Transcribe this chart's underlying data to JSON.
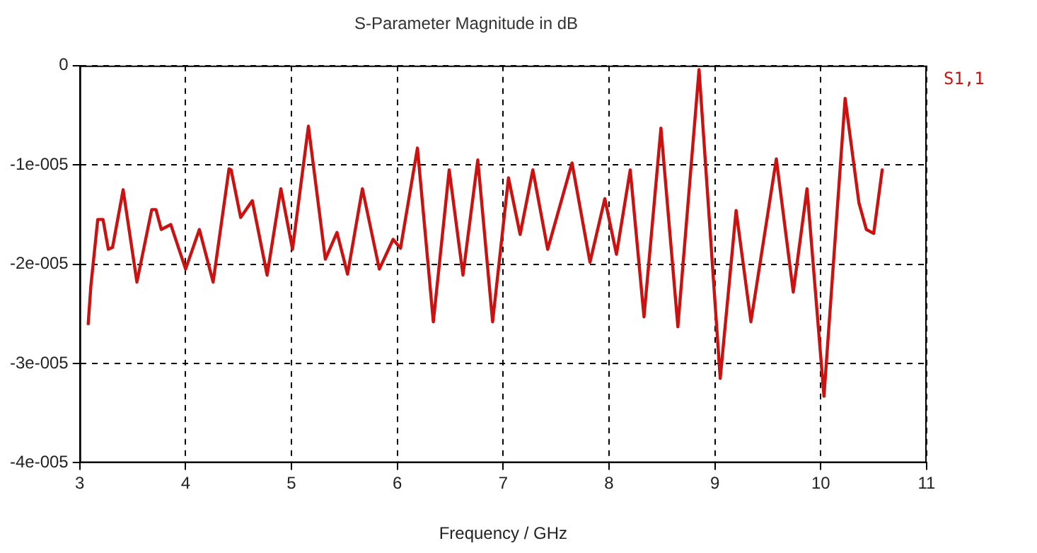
{
  "chart_data": {
    "type": "line",
    "title": "S-Parameter Magnitude in dB",
    "xlabel": "Frequency / GHz",
    "series": [
      {
        "name": "S1,1",
        "color": "#cc1111",
        "x": [
          3.08,
          3.105,
          3.17,
          3.22,
          3.27,
          3.31,
          3.41,
          3.54,
          3.68,
          3.72,
          3.77,
          3.86,
          4.0,
          4.13,
          4.26,
          4.41,
          4.43,
          4.52,
          4.63,
          4.77,
          4.9,
          5.01,
          5.16,
          5.32,
          5.43,
          5.53,
          5.67,
          5.83,
          5.96,
          6.03,
          6.19,
          6.34,
          6.49,
          6.62,
          6.76,
          6.9,
          7.05,
          7.16,
          7.28,
          7.42,
          7.65,
          7.82,
          7.96,
          8.07,
          8.2,
          8.33,
          8.49,
          8.65,
          8.85,
          9.05,
          9.2,
          9.34,
          9.58,
          9.74,
          9.87,
          10.03,
          10.23,
          10.36,
          10.43,
          10.5,
          10.58
        ],
        "values": [
          -2.6e-05,
          -2.22e-05,
          -1.55e-05,
          -1.55e-05,
          -1.85e-05,
          -1.83e-05,
          -1.25e-05,
          -2.18e-05,
          -1.45e-05,
          -1.45e-05,
          -1.65e-05,
          -1.6e-05,
          -2.05e-05,
          -1.65e-05,
          -2.18e-05,
          -1.04e-05,
          -1.05e-05,
          -1.53e-05,
          -1.36e-05,
          -2.11e-05,
          -1.24e-05,
          -1.85e-05,
          -6.1e-06,
          -1.95e-05,
          -1.68e-05,
          -2.1e-05,
          -1.24e-05,
          -2.05e-05,
          -1.75e-05,
          -1.84e-05,
          -8.3e-06,
          -2.58e-05,
          -1.05e-05,
          -2.11e-05,
          -9.5e-06,
          -2.58e-05,
          -1.13e-05,
          -1.7e-05,
          -1.05e-05,
          -1.85e-05,
          -9.8e-06,
          -1.98e-05,
          -1.34e-05,
          -1.9e-05,
          -1.05e-05,
          -2.53e-05,
          -6.3e-06,
          -2.63e-05,
          -4e-07,
          -3.15e-05,
          -1.46e-05,
          -2.58e-05,
          -9.4e-06,
          -2.28e-05,
          -1.24e-05,
          -3.33e-05,
          -3.3e-06,
          -1.38e-05,
          -1.65e-05,
          -1.69e-05,
          -1.05e-05
        ]
      }
    ],
    "xlim": [
      3,
      11
    ],
    "xticks": [
      3,
      4,
      5,
      6,
      7,
      8,
      9,
      10,
      11
    ],
    "ylim": [
      -4e-05,
      0
    ],
    "yticks": [
      {
        "value": -4e-05,
        "label": "-4e-005"
      },
      {
        "value": -3e-05,
        "label": "-3e-005"
      },
      {
        "value": -2e-05,
        "label": "-2e-005"
      },
      {
        "value": -1e-05,
        "label": "-1e-005"
      },
      0
    ],
    "grid": true,
    "legend": "right",
    "marker": "none",
    "line_style": "solid"
  }
}
